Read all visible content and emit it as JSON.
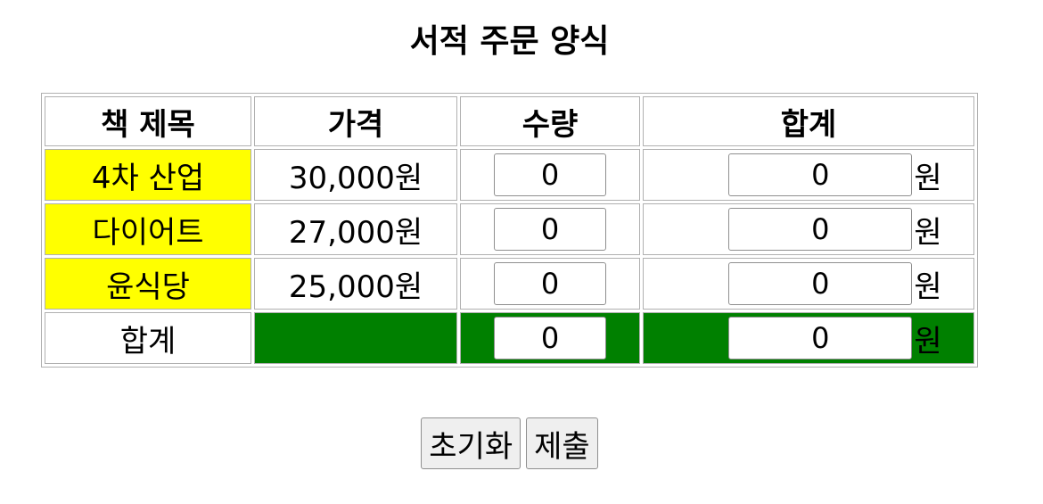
{
  "title": "서적 주문 양식",
  "table": {
    "headers": {
      "book": "책 제목",
      "price": "가격",
      "qty": "수량",
      "sum": "합계"
    },
    "rows": [
      {
        "book": "4차 산업",
        "price": "30,000원",
        "qty": "0",
        "sum": "0",
        "unit": "원"
      },
      {
        "book": "다이어트",
        "price": "27,000원",
        "qty": "0",
        "sum": "0",
        "unit": "원"
      },
      {
        "book": "윤식당",
        "price": "25,000원",
        "qty": "0",
        "sum": "0",
        "unit": "원"
      }
    ],
    "total": {
      "label": "합계",
      "qty": "0",
      "sum": "0",
      "unit": "원"
    }
  },
  "buttons": {
    "reset": "초기화",
    "submit": "제출"
  },
  "colors": {
    "title_cell_bg": "#ffff00",
    "total_row_bg": "#008000"
  }
}
